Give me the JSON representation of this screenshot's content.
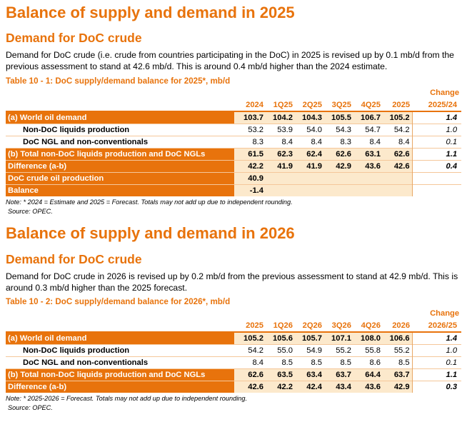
{
  "section2025": {
    "title": "Balance of supply and demand in 2025",
    "subtitle": "Demand for DoC crude",
    "paragraph": "Demand for DoC crude (i.e. crude from countries participating in the DoC) in 2025 is revised up by 0.1 mb/d from the previous assessment to stand at 42.6 mb/d. This is around 0.4 mb/d higher than the 2024 estimate.",
    "table_caption": "Table 10 - 1: DoC supply/demand balance for 2025*, mb/d",
    "change_top": "Change",
    "headers": [
      "2024",
      "1Q25",
      "2Q25",
      "3Q25",
      "4Q25",
      "2025",
      "2025/24"
    ],
    "rows": [
      {
        "label": "(a) World oil demand",
        "values": [
          "103.7",
          "104.2",
          "104.3",
          "105.5",
          "106.7",
          "105.2"
        ],
        "change": "1.4"
      },
      {
        "label": "Non-DoC liquids production",
        "values": [
          "53.2",
          "53.9",
          "54.0",
          "54.3",
          "54.7",
          "54.2"
        ],
        "change": "1.0"
      },
      {
        "label": "DoC NGL and non-conventionals",
        "values": [
          "8.3",
          "8.4",
          "8.4",
          "8.3",
          "8.4",
          "8.4"
        ],
        "change": "0.1"
      },
      {
        "label": "(b) Total non-DoC liquids production and DoC NGLs",
        "values": [
          "61.5",
          "62.3",
          "62.4",
          "62.6",
          "63.1",
          "62.6"
        ],
        "change": "1.1"
      },
      {
        "label": "Difference (a-b)",
        "values": [
          "42.2",
          "41.9",
          "41.9",
          "42.9",
          "43.6",
          "42.6"
        ],
        "change": "0.4"
      },
      {
        "label": "DoC crude oil production",
        "values": [
          "40.9",
          "",
          "",
          "",
          "",
          ""
        ],
        "change": ""
      },
      {
        "label": "Balance",
        "values": [
          "-1.4",
          "",
          "",
          "",
          "",
          ""
        ],
        "change": ""
      }
    ],
    "note": "Note: * 2024 = Estimate and 2025 = Forecast. Totals may not add up due to independent rounding.",
    "source": "Source: OPEC."
  },
  "section2026": {
    "title": "Balance of supply and demand in 2026",
    "subtitle": "Demand for DoC crude",
    "paragraph": "Demand for DoC crude in 2026 is revised up by 0.2 mb/d from the previous assessment to stand at 42.9 mb/d. This is around 0.3 mb/d higher than the 2025 forecast.",
    "table_caption": "Table 10 - 2: DoC supply/demand balance for 2026*, mb/d",
    "change_top": "Change",
    "headers": [
      "2025",
      "1Q26",
      "2Q26",
      "3Q26",
      "4Q26",
      "2026",
      "2026/25"
    ],
    "rows": [
      {
        "label": "(a) World oil demand",
        "values": [
          "105.2",
          "105.6",
          "105.7",
          "107.1",
          "108.0",
          "106.6"
        ],
        "change": "1.4"
      },
      {
        "label": "Non-DoC liquids production",
        "values": [
          "54.2",
          "55.0",
          "54.9",
          "55.2",
          "55.8",
          "55.2"
        ],
        "change": "1.0"
      },
      {
        "label": "DoC NGL and non-conventionals",
        "values": [
          "8.4",
          "8.5",
          "8.5",
          "8.5",
          "8.6",
          "8.5"
        ],
        "change": "0.1"
      },
      {
        "label": "(b) Total non-DoC liquids production and DoC NGLs",
        "values": [
          "62.6",
          "63.5",
          "63.4",
          "63.7",
          "64.4",
          "63.7"
        ],
        "change": "1.1"
      },
      {
        "label": "Difference (a-b)",
        "values": [
          "42.6",
          "42.2",
          "42.4",
          "43.4",
          "43.6",
          "42.9"
        ],
        "change": "0.3"
      }
    ],
    "note": "Note: * 2025-2026 = Forecast. Totals may not add up due to independent rounding.",
    "source": "Source: OPEC."
  },
  "colors": {
    "accent": "#e8730c",
    "row_fill": "#fce9cc"
  }
}
